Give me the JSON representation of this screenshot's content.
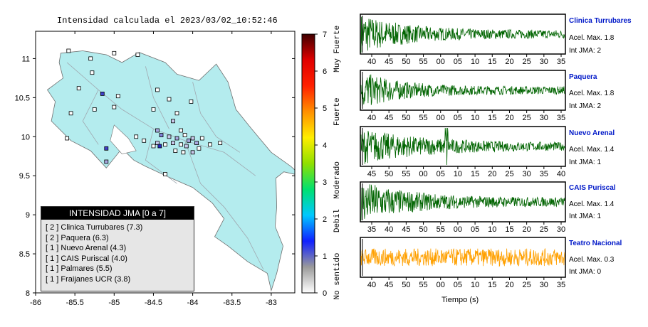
{
  "map": {
    "title": "Intensidad calculada el 2023/03/02_10:52:46",
    "x_ticks": [
      "-86",
      "-85.5",
      "-85",
      "-84.5",
      "-84",
      "-83.5",
      "-83"
    ],
    "y_ticks": [
      "11",
      "10.5",
      "10",
      "9.5",
      "9",
      "8.5",
      "8"
    ],
    "x_range": [
      -86,
      -82.7
    ],
    "y_range": [
      8,
      11.35
    ],
    "land_color": "#b4ecee",
    "stations": [
      {
        "lon": -85.58,
        "lat": 11.1,
        "fill": "#ffffff"
      },
      {
        "lon": -85.3,
        "lat": 11.0,
        "fill": "#ffffff"
      },
      {
        "lon": -85.0,
        "lat": 11.07,
        "fill": "#ffffff"
      },
      {
        "lon": -84.7,
        "lat": 11.05,
        "fill": "#ffffff"
      },
      {
        "lon": -85.28,
        "lat": 10.82,
        "fill": "#ffffff"
      },
      {
        "lon": -84.95,
        "lat": 10.52,
        "fill": "#ffffff"
      },
      {
        "lon": -85.15,
        "lat": 10.55,
        "fill": "#4040c8"
      },
      {
        "lon": -84.45,
        "lat": 10.6,
        "fill": "#ffffff"
      },
      {
        "lon": -84.3,
        "lat": 10.48,
        "fill": "#ffffff"
      },
      {
        "lon": -84.02,
        "lat": 10.45,
        "fill": "#ffffff"
      },
      {
        "lon": -84.5,
        "lat": 10.35,
        "fill": "#ffffff"
      },
      {
        "lon": -85.45,
        "lat": 10.62,
        "fill": "#ffffff"
      },
      {
        "lon": -85.55,
        "lat": 10.3,
        "fill": "#ffffff"
      },
      {
        "lon": -85.25,
        "lat": 10.35,
        "fill": "#ffffff"
      },
      {
        "lon": -85.0,
        "lat": 10.38,
        "fill": "#ffffff"
      },
      {
        "lon": -84.2,
        "lat": 10.3,
        "fill": "#ffffff"
      },
      {
        "lon": -84.25,
        "lat": 10.2,
        "fill": "#c8c8ea"
      },
      {
        "lon": -84.15,
        "lat": 10.08,
        "fill": "#ffffff"
      },
      {
        "lon": -84.45,
        "lat": 10.08,
        "fill": "#a8a8e0"
      },
      {
        "lon": -84.4,
        "lat": 10.02,
        "fill": "#8080d8"
      },
      {
        "lon": -84.3,
        "lat": 10.0,
        "fill": "#c8c8ea"
      },
      {
        "lon": -84.2,
        "lat": 9.98,
        "fill": "#a8a8e0"
      },
      {
        "lon": -84.1,
        "lat": 10.02,
        "fill": "#ffffff"
      },
      {
        "lon": -84.05,
        "lat": 9.95,
        "fill": "#a8a8e0"
      },
      {
        "lon": -84.0,
        "lat": 9.98,
        "fill": "#c8c8ea"
      },
      {
        "lon": -83.95,
        "lat": 9.92,
        "fill": "#a8a8e0"
      },
      {
        "lon": -83.92,
        "lat": 9.85,
        "fill": "#ffffff"
      },
      {
        "lon": -84.08,
        "lat": 9.88,
        "fill": "#c8c8ea"
      },
      {
        "lon": -84.15,
        "lat": 9.9,
        "fill": "#ffffff"
      },
      {
        "lon": -84.25,
        "lat": 9.92,
        "fill": "#c8c8ea"
      },
      {
        "lon": -84.35,
        "lat": 9.9,
        "fill": "#ffffff"
      },
      {
        "lon": -84.45,
        "lat": 9.92,
        "fill": "#c8c8ea"
      },
      {
        "lon": -84.5,
        "lat": 9.88,
        "fill": "#ffffff"
      },
      {
        "lon": -84.42,
        "lat": 9.88,
        "fill": "#2828c0"
      },
      {
        "lon": -84.22,
        "lat": 9.82,
        "fill": "#ffffff"
      },
      {
        "lon": -84.12,
        "lat": 9.8,
        "fill": "#ffffff"
      },
      {
        "lon": -84.0,
        "lat": 9.8,
        "fill": "#c8c8ea"
      },
      {
        "lon": -83.88,
        "lat": 9.98,
        "fill": "#ffffff"
      },
      {
        "lon": -83.78,
        "lat": 9.9,
        "fill": "#ffffff"
      },
      {
        "lon": -83.65,
        "lat": 9.92,
        "fill": "#ffffff"
      },
      {
        "lon": -84.62,
        "lat": 9.95,
        "fill": "#ffffff"
      },
      {
        "lon": -84.72,
        "lat": 10.0,
        "fill": "#ffffff"
      },
      {
        "lon": -85.6,
        "lat": 9.98,
        "fill": "#ffffff"
      },
      {
        "lon": -85.1,
        "lat": 9.85,
        "fill": "#4040c8"
      },
      {
        "lon": -85.1,
        "lat": 9.68,
        "fill": "#a8a8e0"
      },
      {
        "lon": -84.35,
        "lat": 9.52,
        "fill": "#ffffff"
      }
    ]
  },
  "legend": {
    "header": "INTENSIDAD JMA [0 a 7]",
    "items": [
      "[ 2 ]  Clinica Turrubares (7.3)",
      "[ 2 ]  Paquera (6.3)",
      "[ 1 ]  Nuevo Arenal (4.3)",
      "[ 1 ]  CAIS Puriscal (4.0)",
      "[ 1 ]  Palmares (5.5)",
      "[ 1 ]  Fraijanes UCR (3.8)"
    ]
  },
  "colorbar": {
    "range": [
      0,
      7
    ],
    "ticks": [
      "0",
      "1",
      "2",
      "3",
      "4",
      "5",
      "6",
      "7"
    ],
    "labels": [
      {
        "text": "No sentido",
        "value": 0.45
      },
      {
        "text": "Debil",
        "value": 1.95
      },
      {
        "text": "Moderado",
        "value": 3.05
      },
      {
        "text": "Fuerte",
        "value": 4.9
      },
      {
        "text": "Muy Fuerte",
        "value": 6.6
      }
    ],
    "stops": [
      "#ffffff",
      "#9a9a9a",
      "#1020ff",
      "#00c8ff",
      "#00e070",
      "#90e000",
      "#ffee00",
      "#ff9000",
      "#ff2000",
      "#e00000",
      "#400000"
    ]
  },
  "chart_data": [
    {
      "type": "line",
      "name": "Clinica Turrubares",
      "ticks": [
        "40",
        "45",
        "50",
        "55",
        "00",
        "05",
        "10",
        "15",
        "20",
        "25",
        "30",
        "35"
      ],
      "color": "#006400",
      "amp": 0.9,
      "decay": 1.6,
      "burst": 0
    },
    {
      "type": "line",
      "name": "Paquera",
      "ticks": [
        "40",
        "45",
        "50",
        "55",
        "00",
        "05",
        "10",
        "15",
        "20",
        "25",
        "30",
        "35"
      ],
      "color": "#006400",
      "amp": 0.85,
      "decay": 1.8,
      "burst": 0
    },
    {
      "type": "line",
      "name": "Nuevo Arenal",
      "ticks": [
        "45",
        "50",
        "55",
        "00",
        "05",
        "10",
        "15",
        "20",
        "25",
        "30",
        "35",
        "40"
      ],
      "color": "#006400",
      "amp": 0.8,
      "decay": 1.1,
      "burst": 0.42
    },
    {
      "type": "line",
      "name": "CAIS Puriscal",
      "ticks": [
        "35",
        "40",
        "45",
        "50",
        "55",
        "00",
        "05",
        "10",
        "15",
        "20",
        "25",
        "30"
      ],
      "color": "#006400",
      "amp": 0.95,
      "decay": 1.4,
      "burst": 0
    },
    {
      "type": "line",
      "name": "Teatro Nacional",
      "ticks": [
        "40",
        "45",
        "50",
        "55",
        "00",
        "05",
        "10",
        "15",
        "20",
        "25",
        "30",
        "35"
      ],
      "color": "#ffa000",
      "amp": 0.6,
      "decay": 0.0,
      "burst": 0
    }
  ],
  "stations_panel": [
    {
      "name": "Clinica Turrubares",
      "accel": "Acel. Max. 1.8",
      "jma": "Int JMA: 2"
    },
    {
      "name": "Paquera",
      "accel": "Acel. Max. 1.8",
      "jma": "Int JMA: 2"
    },
    {
      "name": "Nuevo Arenal",
      "accel": "Acel. Max. 1.4",
      "jma": "Int JMA: 1"
    },
    {
      "name": "CAIS Puriscal",
      "accel": "Acel. Max. 1.4",
      "jma": "Int JMA: 1"
    },
    {
      "name": "Teatro Nacional",
      "accel": "Acel. Max. 0.3",
      "jma": "Int JMA: 0"
    }
  ],
  "wave_xlabel": "Tiempo (s)"
}
